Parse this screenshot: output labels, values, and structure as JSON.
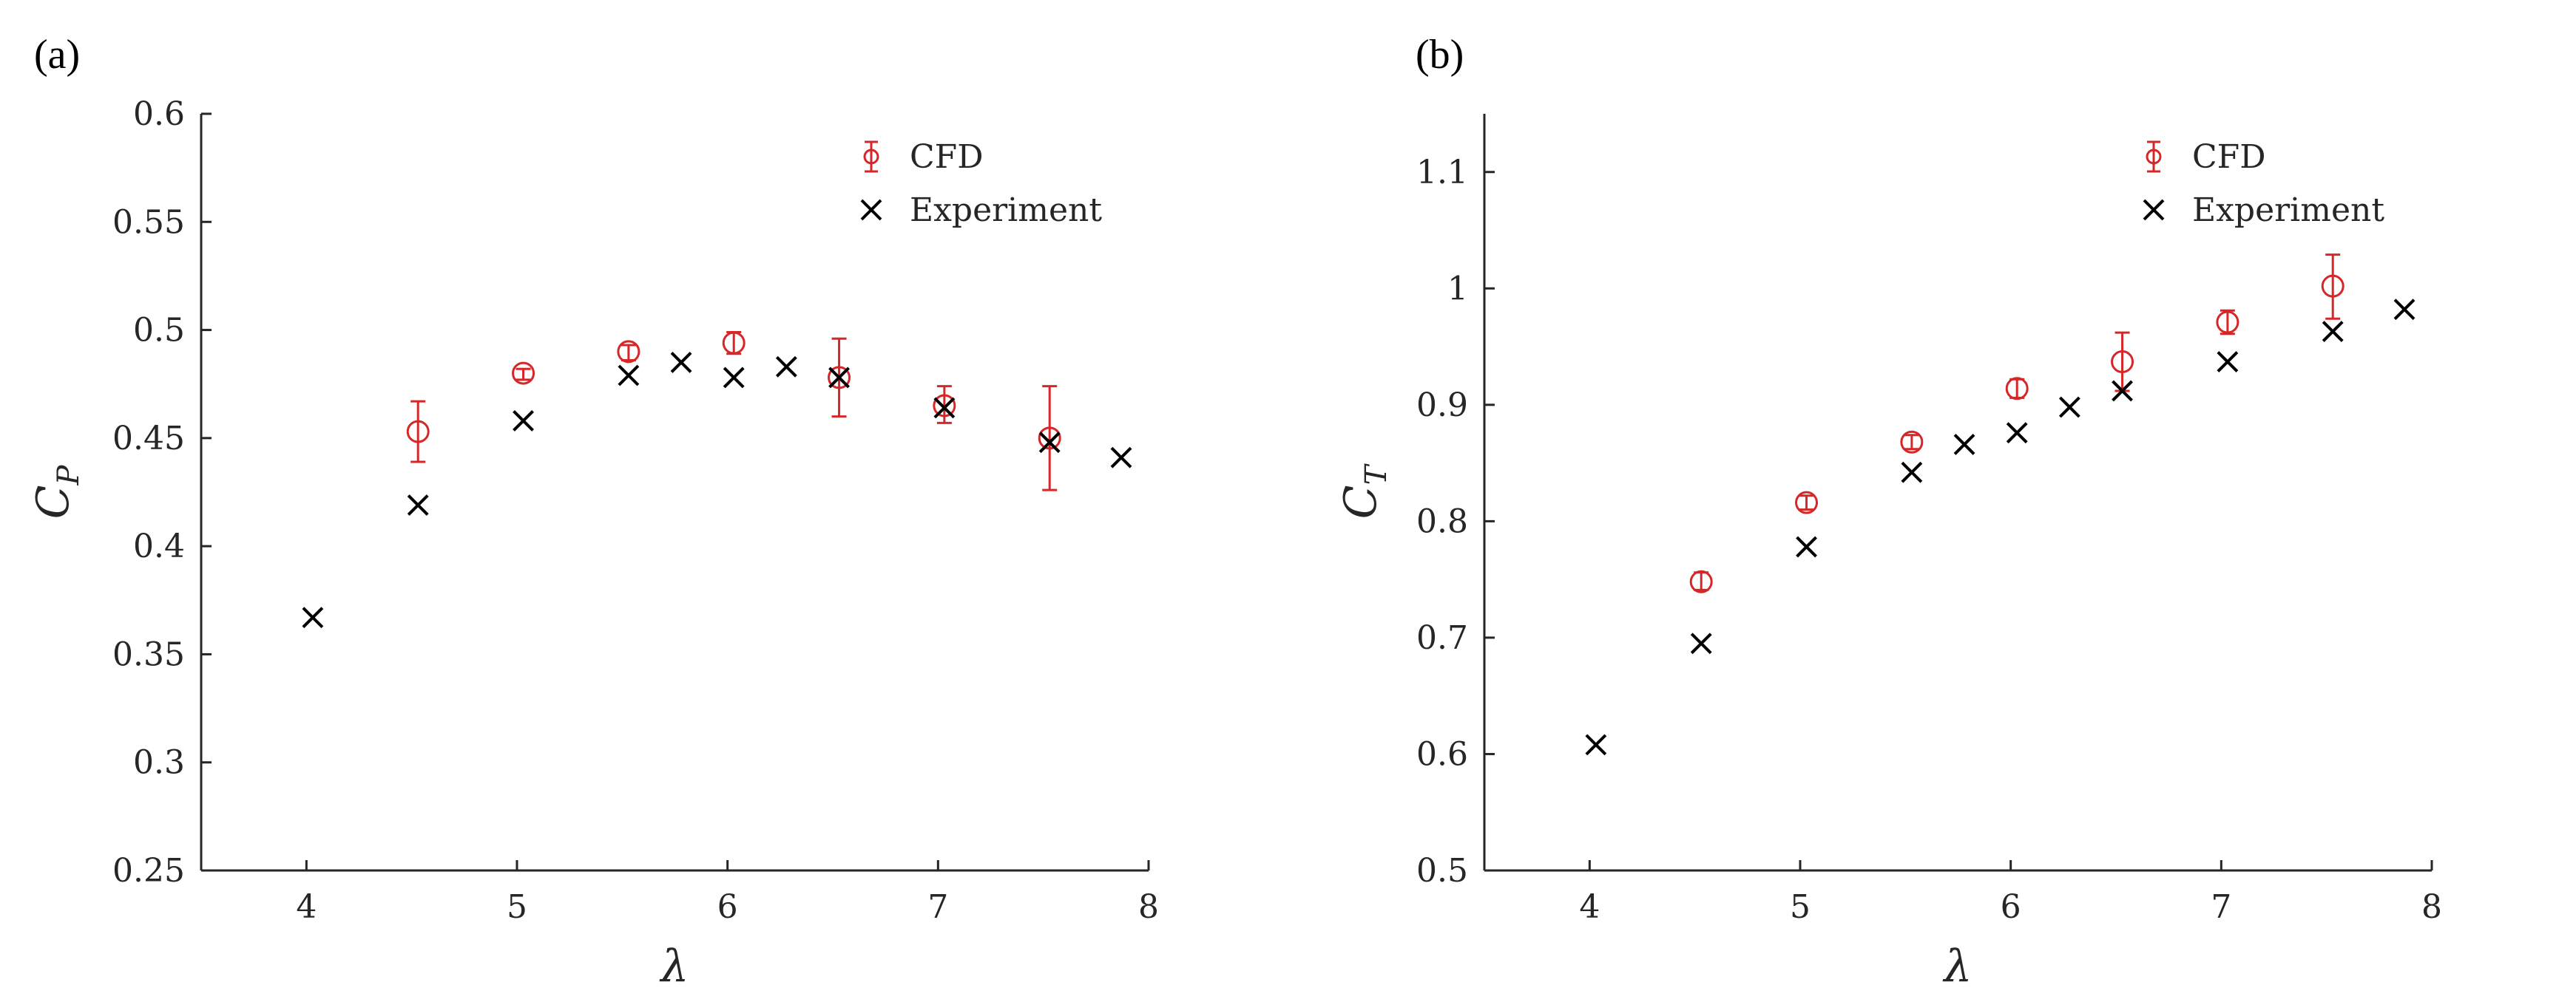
{
  "colors": {
    "cfd": "#d62728",
    "experiment": "#000000",
    "axis": "#262626"
  },
  "chart_data": [
    {
      "type": "scatter",
      "panel_label": "(a)",
      "xlabel": "λ",
      "ylabel_main": "C",
      "ylabel_sub": "P",
      "xlim": [
        3.5,
        8
      ],
      "ylim": [
        0.25,
        0.6
      ],
      "xticks": [
        4,
        5,
        6,
        7,
        8
      ],
      "xtick_labels": [
        "4",
        "5",
        "6",
        "7",
        "8"
      ],
      "yticks": [
        0.25,
        0.3,
        0.35,
        0.4,
        0.45,
        0.5,
        0.55,
        0.6
      ],
      "ytick_labels": [
        "0.25",
        "0.3",
        "0.35",
        "0.4",
        "0.45",
        "0.5",
        "0.55",
        "0.6"
      ],
      "legend_position": "top-right",
      "legend": [
        "CFD",
        "Experiment"
      ],
      "series": [
        {
          "name": "CFD",
          "marker": "circle-errorbar",
          "x": [
            4.53,
            5.03,
            5.53,
            6.03,
            6.53,
            7.03,
            7.53
          ],
          "y": [
            0.453,
            0.48,
            0.49,
            0.494,
            0.478,
            0.465,
            0.45
          ],
          "err_low": [
            0.439,
            0.477,
            0.486,
            0.489,
            0.46,
            0.457,
            0.426
          ],
          "err_high": [
            0.467,
            0.482,
            0.493,
            0.499,
            0.496,
            0.474,
            0.474
          ]
        },
        {
          "name": "Experiment",
          "marker": "x",
          "x": [
            4.03,
            4.53,
            5.03,
            5.53,
            5.78,
            6.03,
            6.28,
            6.53,
            7.03,
            7.53,
            7.87
          ],
          "y": [
            0.367,
            0.419,
            0.458,
            0.479,
            0.485,
            0.478,
            0.483,
            0.478,
            0.464,
            0.448,
            0.441
          ]
        }
      ]
    },
    {
      "type": "scatter",
      "panel_label": "(b)",
      "xlabel": "λ",
      "ylabel_main": "C",
      "ylabel_sub": "T",
      "xlim": [
        3.5,
        8
      ],
      "ylim": [
        0.5,
        1.15
      ],
      "xticks": [
        4,
        5,
        6,
        7,
        8
      ],
      "xtick_labels": [
        "4",
        "5",
        "6",
        "7",
        "8"
      ],
      "yticks": [
        0.5,
        0.6,
        0.7,
        0.8,
        0.9,
        1.0,
        1.1
      ],
      "ytick_labels": [
        "0.5",
        "0.6",
        "0.7",
        "0.8",
        "0.9",
        "1",
        "1.1"
      ],
      "legend_position": "top-right",
      "legend": [
        "CFD",
        "Experiment"
      ],
      "series": [
        {
          "name": "CFD",
          "marker": "circle-errorbar",
          "x": [
            4.53,
            5.03,
            5.53,
            6.03,
            6.53,
            7.03,
            7.53
          ],
          "y": [
            0.748,
            0.816,
            0.868,
            0.914,
            0.937,
            0.971,
            1.002
          ],
          "err_low": [
            0.741,
            0.81,
            0.862,
            0.906,
            0.912,
            0.961,
            0.974
          ],
          "err_high": [
            0.756,
            0.822,
            0.874,
            0.922,
            0.962,
            0.981,
            1.029
          ]
        },
        {
          "name": "Experiment",
          "marker": "x",
          "x": [
            4.03,
            4.53,
            5.03,
            5.53,
            5.78,
            6.03,
            6.28,
            6.53,
            7.03,
            7.53,
            7.87
          ],
          "y": [
            0.608,
            0.695,
            0.778,
            0.842,
            0.866,
            0.876,
            0.898,
            0.912,
            0.937,
            0.963,
            0.982
          ]
        }
      ]
    }
  ]
}
